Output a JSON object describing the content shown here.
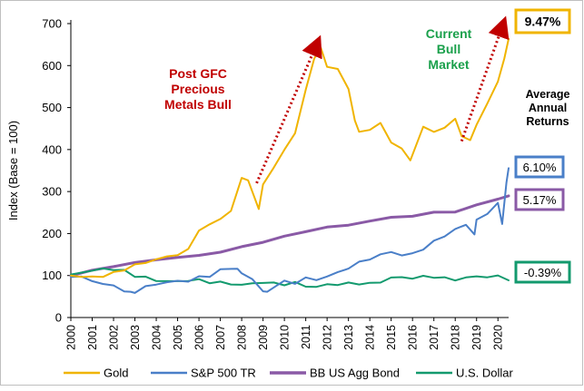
{
  "chart_data": {
    "type": "line",
    "ylabel": "Index (Base = 100)",
    "xlabel": "",
    "ylim": [
      0,
      700
    ],
    "xlim": [
      2000,
      2020.5
    ],
    "y_ticks": [
      "0",
      "100",
      "200",
      "300",
      "400",
      "500",
      "600",
      "700"
    ],
    "x_ticks": [
      "2000",
      "2001",
      "2002",
      "2003",
      "2004",
      "2005",
      "2006",
      "2007",
      "2008",
      "2009",
      "2010",
      "2011",
      "2012",
      "2013",
      "2014",
      "2015",
      "2016",
      "2017",
      "2018",
      "2019",
      "2020"
    ],
    "grid": false,
    "legend_position": "bottom",
    "series": [
      {
        "name": "Gold",
        "color": "#f0b400",
        "return_label": "9.47%",
        "x": [
          2000,
          2000.5,
          2001,
          2001.5,
          2002,
          2002.5,
          2003,
          2003.5,
          2004,
          2004.5,
          2005,
          2005.5,
          2006,
          2006.5,
          2007,
          2007.5,
          2008,
          2008.3,
          2008.8,
          2009,
          2009.5,
          2010,
          2010.5,
          2011,
          2011.4,
          2011.7,
          2012,
          2012.5,
          2013,
          2013.3,
          2013.5,
          2014,
          2014.5,
          2015,
          2015.5,
          2015.9,
          2016.5,
          2017,
          2017.5,
          2018,
          2018.3,
          2018.7,
          2019,
          2019.5,
          2020,
          2020.3,
          2020.5
        ],
        "y": [
          100,
          98,
          95,
          100,
          105,
          115,
          125,
          130,
          140,
          143,
          152,
          160,
          210,
          220,
          235,
          255,
          330,
          330,
          255,
          320,
          355,
          400,
          440,
          540,
          620,
          640,
          600,
          590,
          545,
          470,
          440,
          450,
          460,
          420,
          400,
          375,
          455,
          440,
          455,
          470,
          435,
          420,
          460,
          510,
          560,
          620,
          660
        ]
      },
      {
        "name": "S&P 500 TR",
        "color": "#4a7fc8",
        "return_label": "6.10%",
        "x": [
          2000,
          2000.5,
          2001,
          2001.5,
          2002,
          2002.5,
          2002.8,
          2003,
          2003.5,
          2004,
          2004.5,
          2005,
          2005.5,
          2006,
          2006.5,
          2007,
          2007.8,
          2008,
          2008.5,
          2009,
          2009.2,
          2009.5,
          2010,
          2010.5,
          2011,
          2011.5,
          2012,
          2012.5,
          2013,
          2013.5,
          2014,
          2014.5,
          2015,
          2015.5,
          2016,
          2016.5,
          2017,
          2017.5,
          2018,
          2018.5,
          2018.9,
          2019,
          2019.5,
          2020,
          2020.2,
          2020.4,
          2020.5
        ],
        "y": [
          100,
          95,
          88,
          80,
          75,
          65,
          58,
          62,
          72,
          80,
          84,
          86,
          88,
          95,
          100,
          112,
          118,
          105,
          90,
          65,
          58,
          75,
          85,
          82,
          95,
          88,
          100,
          105,
          120,
          130,
          140,
          150,
          155,
          150,
          150,
          165,
          180,
          195,
          210,
          220,
          200,
          230,
          250,
          270,
          225,
          320,
          355
        ]
      },
      {
        "name": "BB US Agg Bond",
        "color": "#8a5aa6",
        "return_label": "5.17%",
        "x": [
          2000,
          2001,
          2002,
          2003,
          2004,
          2005,
          2006,
          2007,
          2008,
          2009,
          2010,
          2011,
          2012,
          2013,
          2014,
          2015,
          2016,
          2017,
          2018,
          2019,
          2020,
          2020.5
        ],
        "y": [
          100,
          112,
          122,
          130,
          138,
          143,
          148,
          156,
          168,
          180,
          193,
          205,
          215,
          220,
          230,
          238,
          242,
          250,
          252,
          268,
          282,
          290
        ]
      },
      {
        "name": "U.S. Dollar",
        "color": "#139a6e",
        "return_label": "-0.39%",
        "x": [
          2000,
          2000.5,
          2001,
          2001.5,
          2002,
          2002.5,
          2003,
          2003.5,
          2004,
          2004.5,
          2005,
          2005.5,
          2006,
          2006.5,
          2007,
          2007.5,
          2008,
          2008.5,
          2009,
          2009.5,
          2010,
          2010.5,
          2011,
          2011.5,
          2012,
          2012.5,
          2013,
          2013.5,
          2014,
          2014.5,
          2015,
          2015.5,
          2016,
          2016.5,
          2017,
          2017.5,
          2018,
          2018.5,
          2019,
          2019.5,
          2020,
          2020.5
        ],
        "y": [
          100,
          108,
          112,
          115,
          116,
          110,
          100,
          95,
          88,
          87,
          85,
          90,
          88,
          85,
          83,
          80,
          78,
          80,
          85,
          80,
          80,
          82,
          75,
          73,
          78,
          80,
          80,
          82,
          80,
          85,
          95,
          95,
          95,
          96,
          98,
          93,
          90,
          95,
          97,
          98,
          97,
          92
        ]
      }
    ],
    "annotations": [
      {
        "text": [
          "Post GFC",
          "Precious",
          "Metals Bull"
        ],
        "color": "#c00000"
      },
      {
        "text": [
          "Current",
          "Bull",
          "Market"
        ],
        "color": "#1aa04b"
      },
      {
        "text": [
          "Average",
          "Annual",
          "Returns"
        ],
        "color": "#000000"
      }
    ]
  }
}
